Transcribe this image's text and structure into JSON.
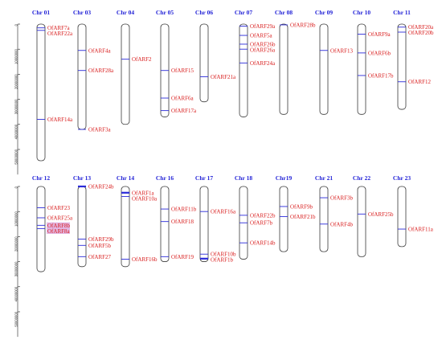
{
  "scale": {
    "max_bp": 60000000,
    "ticks": [
      {
        "value": 0,
        "label": "0"
      },
      {
        "value": 10000000,
        "label": "10000000"
      },
      {
        "value": 20000000,
        "label": "20000000"
      },
      {
        "value": 30000000,
        "label": "30000000"
      },
      {
        "value": 40000000,
        "label": "40000000"
      },
      {
        "value": 50000000,
        "label": "50000000"
      }
    ]
  },
  "colors": {
    "chromosome_label": "#1f1fd6",
    "gene_label": "#d81b1b",
    "marker": "#2b2bd9",
    "highlight": "#d9a0d9"
  },
  "rows": [
    {
      "chromosomes": [
        {
          "name": "Chr 01",
          "length": 54500000,
          "genes": [
            {
              "pos": 1500000,
              "label": "OfARF7a"
            },
            {
              "pos": 2500000,
              "label": "OfARF22a"
            },
            {
              "pos": 38000000,
              "label": "OfARF14a"
            }
          ]
        },
        {
          "name": "Chr 03",
          "length": 42000000,
          "genes": [
            {
              "pos": 10500000,
              "label": "OfARF4a"
            },
            {
              "pos": 18500000,
              "label": "OfARF28a"
            },
            {
              "pos": 42000000,
              "label": "OfARF3a"
            }
          ]
        },
        {
          "name": "Chr 04",
          "length": 40000000,
          "genes": [
            {
              "pos": 14000000,
              "label": "OfARF2"
            }
          ]
        },
        {
          "name": "Chr 05",
          "length": 37000000,
          "genes": [
            {
              "pos": 18500000,
              "label": "OfARF15"
            },
            {
              "pos": 29500000,
              "label": "OfARF6a"
            },
            {
              "pos": 34500000,
              "label": "OfARF17a"
            }
          ]
        },
        {
          "name": "Chr 06",
          "length": 31000000,
          "genes": [
            {
              "pos": 21000000,
              "label": "OfARF21a"
            }
          ]
        },
        {
          "name": "Chr 07",
          "length": 37000000,
          "genes": [
            {
              "pos": 800000,
              "label": "OfARF29a"
            },
            {
              "pos": 4500000,
              "label": "OfARF5a"
            },
            {
              "pos": 8000000,
              "label": "OfARF26b"
            },
            {
              "pos": 10000000,
              "label": "OfARF26a"
            },
            {
              "pos": 15500000,
              "label": "OfARF24a"
            }
          ]
        },
        {
          "name": "Chr 08",
          "length": 36000000,
          "genes": [
            {
              "pos": 300000,
              "label": "OfARF28b"
            }
          ]
        },
        {
          "name": "Chr 09",
          "length": 36000000,
          "genes": [
            {
              "pos": 10500000,
              "label": "OfARF13"
            }
          ]
        },
        {
          "name": "Chr 10",
          "length": 36000000,
          "genes": [
            {
              "pos": 4000000,
              "label": "OfARF9a"
            },
            {
              "pos": 11500000,
              "label": "OfARF6b"
            },
            {
              "pos": 20500000,
              "label": "OfARF17b"
            }
          ]
        },
        {
          "name": "Chr 11",
          "length": 34000000,
          "genes": [
            {
              "pos": 1200000,
              "label": "OfARF20a"
            },
            {
              "pos": 3200000,
              "label": "OfARF20b"
            },
            {
              "pos": 23000000,
              "label": "OfARF12"
            }
          ]
        }
      ]
    },
    {
      "chromosomes": [
        {
          "name": "Chr 12",
          "length": 34000000,
          "genes": [
            {
              "pos": 8500000,
              "label": "OfARF23"
            },
            {
              "pos": 12500000,
              "label": "OfARF25a"
            },
            {
              "pos": 15500000,
              "label": "OfARF8b",
              "highlight": true
            },
            {
              "pos": 16800000,
              "label": "OfARF8a",
              "highlight": true
            }
          ]
        },
        {
          "name": "Chr 13",
          "length": 32000000,
          "genes": [
            {
              "pos": 0,
              "label": "OfARF24b",
              "thick": true
            },
            {
              "pos": 21000000,
              "label": "OfARF29b"
            },
            {
              "pos": 23500000,
              "label": "OfARF5b"
            },
            {
              "pos": 28000000,
              "label": "OfARF27"
            }
          ]
        },
        {
          "name": "Chr 14",
          "length": 32000000,
          "genes": [
            {
              "pos": 2500000,
              "label": "OfARF1a",
              "thick": true
            },
            {
              "pos": 4000000,
              "label": "OfARF10a"
            },
            {
              "pos": 29000000,
              "label": "OfARF16b"
            }
          ]
        },
        {
          "name": "Chr 16",
          "length": 30000000,
          "genes": [
            {
              "pos": 9000000,
              "label": "OfARF11b"
            },
            {
              "pos": 14000000,
              "label": "OfARF18"
            },
            {
              "pos": 28000000,
              "label": "OfARF19"
            }
          ]
        },
        {
          "name": "Chr 17",
          "length": 30000000,
          "genes": [
            {
              "pos": 10000000,
              "label": "OfARF16a"
            },
            {
              "pos": 27000000,
              "label": "OfARF10b"
            },
            {
              "pos": 28800000,
              "label": "OfARF1b",
              "thick": true
            }
          ]
        },
        {
          "name": "Chr 18",
          "length": 29000000,
          "genes": [
            {
              "pos": 11500000,
              "label": "OfARF22b"
            },
            {
              "pos": 14500000,
              "label": "OfARF7b"
            },
            {
              "pos": 22500000,
              "label": "OfARF14b"
            }
          ]
        },
        {
          "name": "Chr19",
          "length": 26000000,
          "genes": [
            {
              "pos": 8000000,
              "label": "OfARF9b"
            },
            {
              "pos": 12000000,
              "label": "OfARF21b"
            }
          ]
        },
        {
          "name": "Chr 21",
          "length": 26000000,
          "genes": [
            {
              "pos": 4500000,
              "label": "OfARF3b"
            },
            {
              "pos": 15000000,
              "label": "OfARF4b"
            }
          ]
        },
        {
          "name": "Chr 22",
          "length": 28000000,
          "genes": [
            {
              "pos": 11000000,
              "label": "OfARF25b"
            }
          ]
        },
        {
          "name": "Chr 23",
          "length": 24000000,
          "genes": [
            {
              "pos": 17000000,
              "label": "OfARF11a"
            }
          ]
        }
      ]
    }
  ]
}
